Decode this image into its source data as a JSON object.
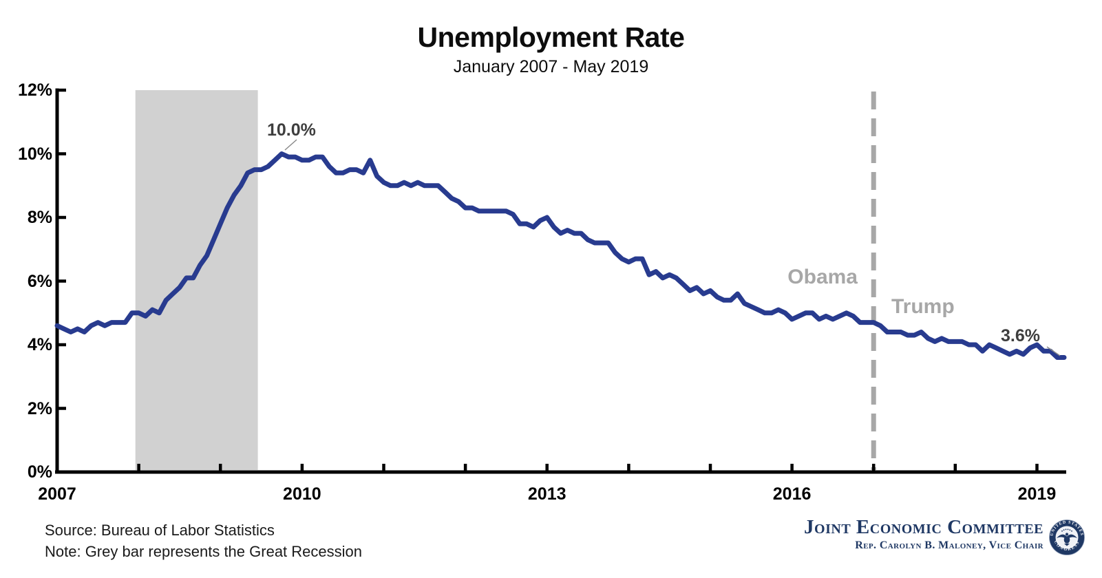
{
  "title": "Unemployment Rate",
  "subtitle": "January 2007 - May 2019",
  "footer": {
    "source": "Source: Bureau of Labor Statistics",
    "note": "Note: Grey bar represents the Great Recession"
  },
  "branding": {
    "committee": "Joint Economic Committee",
    "vice_chair": "Rep. Carolyn B. Maloney, Vice Chair",
    "seal_top": "UNITED STATES",
    "seal_bottom": "CONGRESS"
  },
  "colors": {
    "line-color": "#283B8F",
    "recession-color": "#D1D1D1",
    "divider-color": "#A7A7A7",
    "annotation-color": "#3E3E3E",
    "muted-label-color": "#A7A7A7",
    "brand-navy": "#1F3864"
  },
  "chart_data": {
    "type": "line",
    "title": "Unemployment Rate",
    "subtitle": "January 2007 - May 2019",
    "unit": "percent",
    "x_start": "2007-01",
    "x_end": "2019-05",
    "frequency": "monthly",
    "ylim": [
      0,
      12
    ],
    "ytick_values": [
      0,
      2,
      4,
      6,
      8,
      10,
      12
    ],
    "ytick_labels": [
      "0%",
      "2%",
      "4%",
      "6%",
      "8%",
      "10%",
      "12%"
    ],
    "xtick_labels": [
      "2007",
      "2010",
      "2013",
      "2016",
      "2019"
    ],
    "xtick_every_year": true,
    "grid": false,
    "legend": false,
    "series": [
      {
        "name": "Unemployment rate",
        "values": [
          4.6,
          4.5,
          4.4,
          4.5,
          4.4,
          4.6,
          4.7,
          4.6,
          4.7,
          4.7,
          4.7,
          5.0,
          5.0,
          4.9,
          5.1,
          5.0,
          5.4,
          5.6,
          5.8,
          6.1,
          6.1,
          6.5,
          6.8,
          7.3,
          7.8,
          8.3,
          8.7,
          9.0,
          9.4,
          9.5,
          9.5,
          9.6,
          9.8,
          10.0,
          9.9,
          9.9,
          9.8,
          9.8,
          9.9,
          9.9,
          9.6,
          9.4,
          9.4,
          9.5,
          9.5,
          9.4,
          9.8,
          9.3,
          9.1,
          9.0,
          9.0,
          9.1,
          9.0,
          9.1,
          9.0,
          9.0,
          9.0,
          8.8,
          8.6,
          8.5,
          8.3,
          8.3,
          8.2,
          8.2,
          8.2,
          8.2,
          8.2,
          8.1,
          7.8,
          7.8,
          7.7,
          7.9,
          8.0,
          7.7,
          7.5,
          7.6,
          7.5,
          7.5,
          7.3,
          7.2,
          7.2,
          7.2,
          6.9,
          6.7,
          6.6,
          6.7,
          6.7,
          6.2,
          6.3,
          6.1,
          6.2,
          6.1,
          5.9,
          5.7,
          5.8,
          5.6,
          5.7,
          5.5,
          5.4,
          5.4,
          5.6,
          5.3,
          5.2,
          5.1,
          5.0,
          5.0,
          5.1,
          5.0,
          4.8,
          4.9,
          5.0,
          5.0,
          4.8,
          4.9,
          4.8,
          4.9,
          5.0,
          4.9,
          4.7,
          4.7,
          4.7,
          4.6,
          4.4,
          4.4,
          4.4,
          4.3,
          4.3,
          4.4,
          4.2,
          4.1,
          4.2,
          4.1,
          4.1,
          4.1,
          4.0,
          4.0,
          3.8,
          4.0,
          3.9,
          3.8,
          3.7,
          3.8,
          3.7,
          3.9,
          4.0,
          3.8,
          3.8,
          3.6,
          3.6
        ]
      }
    ],
    "recession_band": {
      "start": "2007-12",
      "end": "2009-06",
      "label": "Great Recession"
    },
    "divider_line": {
      "at": "2017-01",
      "left_label": "Obama",
      "right_label": "Trump"
    },
    "point_annotations": [
      {
        "label": "10.0%",
        "at": "2009-10",
        "value": 10.0
      },
      {
        "label": "3.6%",
        "at": "2019-05",
        "value": 3.6
      }
    ]
  }
}
